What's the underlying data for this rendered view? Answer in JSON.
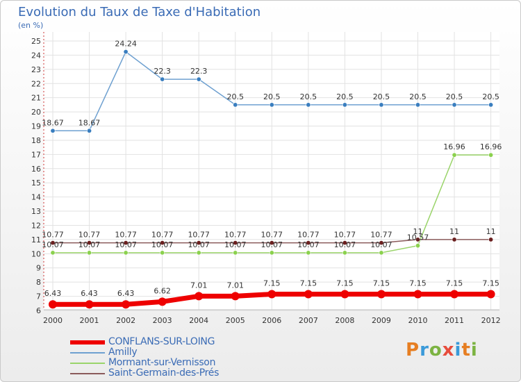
{
  "header": {
    "title": "Evolution du Taux de Taxe d'Habitation",
    "subtitle": "(en %)"
  },
  "brand": {
    "text": "Proxiti",
    "colors": [
      "#e67e22",
      "#3a9ad9",
      "#7cb342",
      "#e74c3c",
      "#3a9ad9",
      "#e67e22",
      "#7cb342"
    ]
  },
  "chart_data": {
    "type": "line",
    "title": "Evolution du Taux de Taxe d'Habitation",
    "ylabel": "(en %)",
    "xlabel": "",
    "ylim": [
      6,
      25
    ],
    "yticks": [
      "6",
      "7",
      "8",
      "9",
      "10",
      "11",
      "12",
      "13",
      "14",
      "15",
      "16",
      "17",
      "18",
      "19",
      "20",
      "21",
      "22",
      "23",
      "24",
      "25"
    ],
    "categories": [
      "2000",
      "2001",
      "2002",
      "2003",
      "2004",
      "2005",
      "2006",
      "2007",
      "2008",
      "2009",
      "2010",
      "2011",
      "2012"
    ],
    "grid": true,
    "series": [
      {
        "name": "CONFLANS-SUR-LOING",
        "color": "#ee0000",
        "thick": true,
        "values": [
          6.43,
          6.43,
          6.43,
          6.62,
          7.01,
          7.01,
          7.15,
          7.15,
          7.15,
          7.15,
          7.15,
          7.15,
          7.15
        ],
        "labels": [
          "6.43",
          "6.43",
          "6.43",
          "6.62",
          "7.01",
          "7.01",
          "7.15",
          "7.15",
          "7.15",
          "7.15",
          "7.15",
          "7.15",
          "7.15"
        ]
      },
      {
        "name": "Amilly",
        "color": "#6ea0d0",
        "marker": "#3a7ebf",
        "values": [
          18.67,
          18.67,
          24.24,
          22.3,
          22.3,
          20.5,
          20.5,
          20.5,
          20.5,
          20.5,
          20.5,
          20.5,
          20.5
        ],
        "labels": [
          "18.67",
          "18.67",
          "24.24",
          "22.3",
          "22.3",
          "20.5",
          "20.5",
          "20.5",
          "20.5",
          "20.5",
          "20.5",
          "20.5",
          "20.5"
        ]
      },
      {
        "name": "Mormant-sur-Vernisson",
        "color": "#9ad46a",
        "marker": "#8bd14e",
        "values": [
          10.07,
          10.07,
          10.07,
          10.07,
          10.07,
          10.07,
          10.07,
          10.07,
          10.07,
          10.07,
          10.57,
          16.96,
          16.96
        ],
        "labels": [
          "10.07",
          "10.07",
          "10.07",
          "10.07",
          "10.07",
          "10.07",
          "10.07",
          "10.07",
          "10.07",
          "10.07",
          "10.57",
          "16.96",
          "16.96"
        ]
      },
      {
        "name": "Saint-Germain-des-Prés",
        "color": "#8a5a5a",
        "marker": "#6b1f1f",
        "values": [
          10.77,
          10.77,
          10.77,
          10.77,
          10.77,
          10.77,
          10.77,
          10.77,
          10.77,
          10.77,
          11,
          11,
          11
        ],
        "labels": [
          "10.77",
          "10.77",
          "10.77",
          "10.77",
          "10.77",
          "10.77",
          "10.77",
          "10.77",
          "10.77",
          "10.77",
          "11",
          "11",
          "11"
        ]
      }
    ]
  }
}
